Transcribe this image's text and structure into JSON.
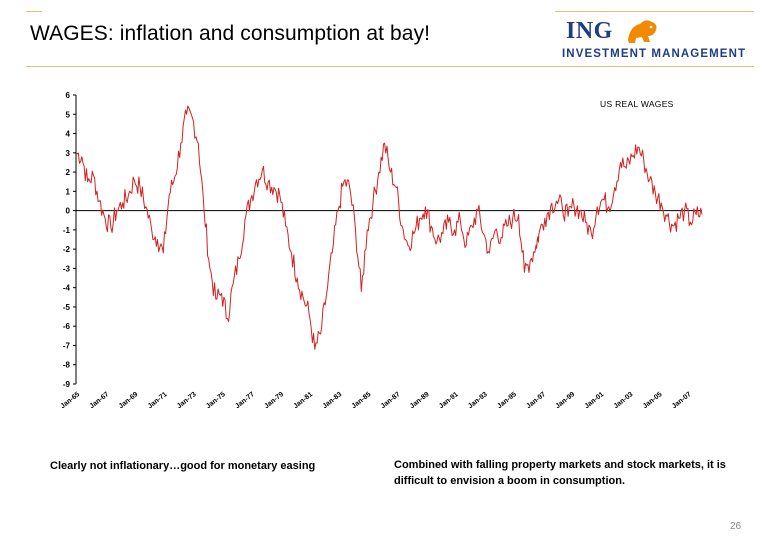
{
  "slide": {
    "title": "WAGES: inflation and consumption at bay!",
    "logo_top": "ING",
    "logo_bottom": "INVESTMENT MANAGEMENT",
    "caption_left": "Clearly not inflationary…good for monetary easing",
    "caption_right": "Combined with falling property markets and stock markets, it is difficult to envision a boom in consumption.",
    "page_number": "26"
  },
  "colors": {
    "line": "#d42020",
    "brand": "#1f3c88",
    "accent": "#e3c17a",
    "lion": "#f08a00"
  },
  "chart_data": {
    "type": "line",
    "title": "",
    "legend_label": "US REAL WAGES",
    "legend_position": "top-right",
    "xlabel": "",
    "ylabel": "",
    "ylim": [
      -9,
      6
    ],
    "yticks": [
      6,
      5,
      4,
      3,
      2,
      1,
      0,
      -1,
      -2,
      -3,
      -4,
      -5,
      -6,
      -7,
      -8,
      -9
    ],
    "xlim": [
      1965,
      2008
    ],
    "xticks": [
      "Jan-65",
      "Jan-67",
      "Jan-69",
      "Jan-71",
      "Jan-73",
      "Jan-75",
      "Jan-77",
      "Jan-79",
      "Jan-81",
      "Jan-83",
      "Jan-85",
      "Jan-87",
      "Jan-89",
      "Jan-91",
      "Jan-93",
      "Jan-95",
      "Jan-97",
      "Jan-99",
      "Jan-01",
      "Jan-03",
      "Jan-05",
      "Jan-07"
    ],
    "series": [
      {
        "name": "US REAL WAGES",
        "points": [
          [
            1965.0,
            3.0
          ],
          [
            1965.4,
            2.8
          ],
          [
            1965.8,
            1.5
          ],
          [
            1966.2,
            1.8
          ],
          [
            1966.6,
            0.5
          ],
          [
            1967.0,
            -0.4
          ],
          [
            1967.4,
            -0.9
          ],
          [
            1967.8,
            0.0
          ],
          [
            1968.2,
            0.4
          ],
          [
            1968.6,
            0.8
          ],
          [
            1969.0,
            1.6
          ],
          [
            1969.4,
            1.2
          ],
          [
            1969.8,
            0.2
          ],
          [
            1970.2,
            -1.0
          ],
          [
            1970.6,
            -1.5
          ],
          [
            1971.0,
            -2.2
          ],
          [
            1971.4,
            0.8
          ],
          [
            1971.8,
            1.8
          ],
          [
            1972.2,
            3.5
          ],
          [
            1972.6,
            5.0
          ],
          [
            1973.0,
            4.8
          ],
          [
            1973.4,
            3.5
          ],
          [
            1973.8,
            0.0
          ],
          [
            1974.2,
            -3.0
          ],
          [
            1974.6,
            -4.6
          ],
          [
            1975.0,
            -4.3
          ],
          [
            1975.4,
            -5.6
          ],
          [
            1975.8,
            -3.8
          ],
          [
            1976.2,
            -2.5
          ],
          [
            1976.6,
            -0.5
          ],
          [
            1977.0,
            0.6
          ],
          [
            1977.4,
            1.6
          ],
          [
            1977.8,
            2.1
          ],
          [
            1978.2,
            1.5
          ],
          [
            1978.6,
            1.2
          ],
          [
            1979.0,
            0.8
          ],
          [
            1979.4,
            -0.8
          ],
          [
            1979.8,
            -2.2
          ],
          [
            1980.2,
            -3.5
          ],
          [
            1980.6,
            -4.5
          ],
          [
            1981.0,
            -5.3
          ],
          [
            1981.4,
            -7.2
          ],
          [
            1981.8,
            -6.4
          ],
          [
            1982.2,
            -4.4
          ],
          [
            1982.6,
            -2.2
          ],
          [
            1983.0,
            0.0
          ],
          [
            1983.4,
            1.5
          ],
          [
            1983.8,
            1.2
          ],
          [
            1984.2,
            -1.0
          ],
          [
            1984.6,
            -4.2
          ],
          [
            1985.0,
            -1.0
          ],
          [
            1985.4,
            0.4
          ],
          [
            1985.8,
            2.0
          ],
          [
            1986.2,
            3.5
          ],
          [
            1986.6,
            2.0
          ],
          [
            1987.0,
            1.2
          ],
          [
            1987.4,
            -0.8
          ],
          [
            1987.8,
            -1.8
          ],
          [
            1988.2,
            -1.2
          ],
          [
            1988.6,
            -0.4
          ],
          [
            1989.0,
            0.2
          ],
          [
            1989.4,
            -0.8
          ],
          [
            1989.8,
            -1.6
          ],
          [
            1990.2,
            -1.2
          ],
          [
            1990.6,
            -0.6
          ],
          [
            1991.0,
            -1.0
          ],
          [
            1991.4,
            -0.5
          ],
          [
            1991.8,
            -1.8
          ],
          [
            1992.2,
            -0.8
          ],
          [
            1992.6,
            0.0
          ],
          [
            1993.0,
            -1.2
          ],
          [
            1993.4,
            -2.2
          ],
          [
            1993.8,
            -1.0
          ],
          [
            1994.2,
            -1.4
          ],
          [
            1994.6,
            -0.8
          ],
          [
            1995.0,
            -0.4
          ],
          [
            1995.4,
            -0.2
          ],
          [
            1995.8,
            -3.2
          ],
          [
            1996.2,
            -2.6
          ],
          [
            1996.6,
            -1.8
          ],
          [
            1996.8,
            -1.2
          ],
          [
            1997.2,
            -0.4
          ],
          [
            1997.6,
            0.2
          ],
          [
            1998.0,
            0.5
          ],
          [
            1998.4,
            0.2
          ],
          [
            1998.8,
            -0.3
          ],
          [
            1999.2,
            0.3
          ],
          [
            1999.6,
            0.0
          ],
          [
            2000.0,
            -0.6
          ],
          [
            2000.4,
            -1.2
          ],
          [
            2000.8,
            0.2
          ],
          [
            2001.2,
            0.6
          ],
          [
            2001.6,
            0.2
          ],
          [
            2002.0,
            1.2
          ],
          [
            2002.4,
            2.5
          ],
          [
            2002.8,
            2.2
          ],
          [
            2003.2,
            2.8
          ],
          [
            2003.6,
            3.3
          ],
          [
            2004.0,
            2.6
          ],
          [
            2004.4,
            1.6
          ],
          [
            2004.8,
            0.9
          ],
          [
            2005.2,
            0.4
          ],
          [
            2005.6,
            -0.3
          ],
          [
            2006.0,
            -0.8
          ],
          [
            2006.4,
            -0.4
          ],
          [
            2006.8,
            0.0
          ],
          [
            2007.2,
            -0.6
          ],
          [
            2007.6,
            -0.2
          ],
          [
            2008.0,
            -0.2
          ]
        ]
      }
    ]
  }
}
